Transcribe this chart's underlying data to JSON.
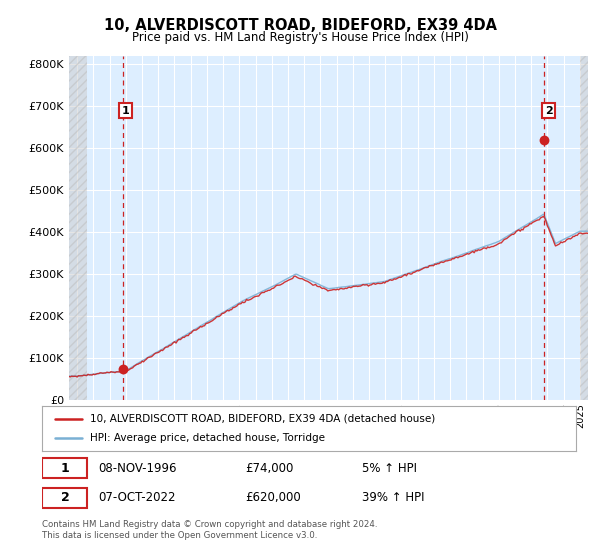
{
  "title": "10, ALVERDISCOTT ROAD, BIDEFORD, EX39 4DA",
  "subtitle": "Price paid vs. HM Land Registry's House Price Index (HPI)",
  "sale1_date": "08-NOV-1996",
  "sale1_price": 74000,
  "sale1_pct": "5%",
  "sale2_date": "07-OCT-2022",
  "sale2_price": 620000,
  "sale2_pct": "39%",
  "legend_line1": "10, ALVERDISCOTT ROAD, BIDEFORD, EX39 4DA (detached house)",
  "legend_line2": "HPI: Average price, detached house, Torridge",
  "footer": "Contains HM Land Registry data © Crown copyright and database right 2024.\nThis data is licensed under the Open Government Licence v3.0.",
  "hpi_color": "#7ab0d4",
  "price_color": "#cc2222",
  "marker_color": "#cc2222",
  "ylim": [
    0,
    820000
  ],
  "yticks": [
    0,
    100000,
    200000,
    300000,
    400000,
    500000,
    600000,
    700000,
    800000
  ],
  "xlim_start": 1993.5,
  "xlim_end": 2025.5,
  "background_color": "#ffffff",
  "plot_bg_color": "#ddeeff",
  "sale1_t": 1996.85,
  "sale2_t": 2022.77,
  "hatch_end": 1994.5,
  "hatch_start_right": 2025.0
}
